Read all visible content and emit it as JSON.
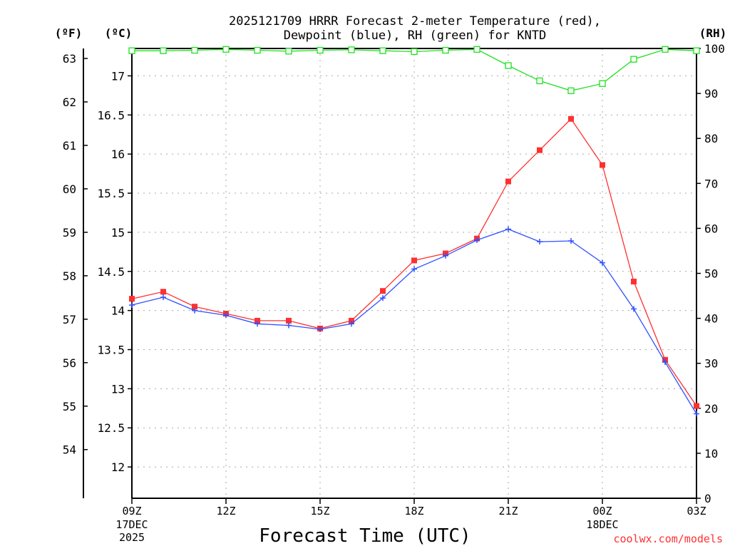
{
  "chart_data": {
    "type": "line",
    "title_line1": "2025121709 HRRR Forecast 2-meter Temperature (red),",
    "title_line2": "Dewpoint (blue), RH (green) for KNTD",
    "unit_f": "(ºF)",
    "unit_c": "(ºC)",
    "unit_rh": "(RH)",
    "xlabel": "Forecast Time (UTC)",
    "credit": "coolwx.com/models",
    "x_hours": [
      0,
      1,
      2,
      3,
      4,
      5,
      6,
      7,
      8,
      9,
      10,
      11,
      12,
      13,
      14,
      15,
      16,
      17,
      18
    ],
    "x_ticks": [
      {
        "hour": 0,
        "label": "09Z",
        "sub": [
          "17DEC",
          "2025"
        ]
      },
      {
        "hour": 3,
        "label": "12Z",
        "sub": []
      },
      {
        "hour": 6,
        "label": "15Z",
        "sub": []
      },
      {
        "hour": 9,
        "label": "18Z",
        "sub": []
      },
      {
        "hour": 12,
        "label": "21Z",
        "sub": []
      },
      {
        "hour": 15,
        "label": "00Z",
        "sub": [
          "18DEC"
        ]
      },
      {
        "hour": 18,
        "label": "03Z",
        "sub": []
      }
    ],
    "x_range": [
      0,
      18
    ],
    "c_range": [
      11.6,
      17.35
    ],
    "c_ticks": [
      "12",
      "12.5",
      "13",
      "13.5",
      "14",
      "14.5",
      "15",
      "15.5",
      "16",
      "16.5",
      "17"
    ],
    "f_ticks": [
      "54",
      "55",
      "56",
      "57",
      "58",
      "59",
      "60",
      "61",
      "62",
      "63"
    ],
    "rh_range": [
      0,
      100
    ],
    "rh_ticks": [
      "0",
      "10",
      "20",
      "30",
      "40",
      "50",
      "60",
      "70",
      "80",
      "90",
      "100"
    ],
    "grid": true,
    "series": [
      {
        "name": "Temperature",
        "color": "#ff3030",
        "marker": "filled-square",
        "axis": "celsius",
        "values": [
          14.15,
          14.24,
          14.05,
          13.96,
          13.87,
          13.87,
          13.77,
          13.87,
          14.25,
          14.64,
          14.73,
          14.92,
          15.65,
          16.05,
          16.45,
          15.86,
          14.37,
          13.37,
          12.78
        ]
      },
      {
        "name": "Dewpoint",
        "color": "#3050ff",
        "marker": "plus",
        "axis": "celsius",
        "values": [
          14.07,
          14.17,
          14.0,
          13.94,
          13.83,
          13.81,
          13.76,
          13.83,
          14.16,
          14.53,
          14.7,
          14.9,
          15.04,
          14.88,
          14.89,
          14.61,
          14.02,
          13.34,
          12.68
        ]
      },
      {
        "name": "RH",
        "color": "#20e020",
        "marker": "open-square",
        "axis": "rh",
        "values": [
          99.5,
          99.5,
          99.6,
          99.8,
          99.6,
          99.4,
          99.6,
          99.7,
          99.5,
          99.3,
          99.6,
          99.8,
          96.2,
          92.8,
          90.6,
          92.2,
          97.6,
          99.8,
          99.5
        ]
      }
    ]
  }
}
